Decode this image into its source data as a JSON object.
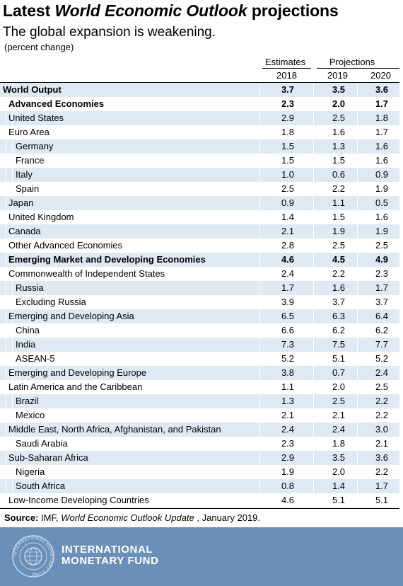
{
  "title": {
    "prefix": "Latest ",
    "italic": "World Economic Outlook",
    "suffix": " projections"
  },
  "subtitle": "The global expansion is weakening.",
  "unit": "(percent change)",
  "header": {
    "estimates": "Estimates",
    "projections": "Projections",
    "years": [
      "2018",
      "2019",
      "2020"
    ]
  },
  "rows": [
    {
      "label": "World Output",
      "indent": 0,
      "bold": true,
      "values": [
        "3.7",
        "3.5",
        "3.6"
      ]
    },
    {
      "label": "Advanced Economies",
      "indent": 1,
      "bold": true,
      "values": [
        "2.3",
        "2.0",
        "1.7"
      ]
    },
    {
      "label": "United States",
      "indent": 1,
      "bold": false,
      "values": [
        "2.9",
        "2.5",
        "1.8"
      ]
    },
    {
      "label": "Euro Area",
      "indent": 1,
      "bold": false,
      "values": [
        "1.8",
        "1.6",
        "1.7"
      ]
    },
    {
      "label": "Germany",
      "indent": 2,
      "bold": false,
      "values": [
        "1.5",
        "1.3",
        "1.6"
      ]
    },
    {
      "label": "France",
      "indent": 2,
      "bold": false,
      "values": [
        "1.5",
        "1.5",
        "1.6"
      ]
    },
    {
      "label": "Italy",
      "indent": 2,
      "bold": false,
      "values": [
        "1.0",
        "0.6",
        "0.9"
      ]
    },
    {
      "label": "Spain",
      "indent": 2,
      "bold": false,
      "values": [
        "2.5",
        "2.2",
        "1.9"
      ]
    },
    {
      "label": "Japan",
      "indent": 1,
      "bold": false,
      "values": [
        "0.9",
        "1.1",
        "0.5"
      ]
    },
    {
      "label": "United Kingdom",
      "indent": 1,
      "bold": false,
      "values": [
        "1.4",
        "1.5",
        "1.6"
      ]
    },
    {
      "label": "Canada",
      "indent": 1,
      "bold": false,
      "values": [
        "2.1",
        "1.9",
        "1.9"
      ]
    },
    {
      "label": "Other Advanced Economies",
      "indent": 1,
      "bold": false,
      "values": [
        "2.8",
        "2.5",
        "2.5"
      ]
    },
    {
      "label": "Emerging Market and Developing Economies",
      "indent": 1,
      "bold": true,
      "values": [
        "4.6",
        "4.5",
        "4.9"
      ]
    },
    {
      "label": "Commonwealth of Independent States",
      "indent": 1,
      "bold": false,
      "values": [
        "2.4",
        "2.2",
        "2.3"
      ]
    },
    {
      "label": "Russia",
      "indent": 2,
      "bold": false,
      "values": [
        "1.7",
        "1.6",
        "1.7"
      ]
    },
    {
      "label": "Excluding Russia",
      "indent": 2,
      "bold": false,
      "values": [
        "3.9",
        "3.7",
        "3.7"
      ]
    },
    {
      "label": "Emerging and Developing Asia",
      "indent": 1,
      "bold": false,
      "values": [
        "6.5",
        "6.3",
        "6.4"
      ]
    },
    {
      "label": "China",
      "indent": 2,
      "bold": false,
      "values": [
        "6.6",
        "6.2",
        "6.2"
      ]
    },
    {
      "label": "India",
      "indent": 2,
      "bold": false,
      "values": [
        "7.3",
        "7.5",
        "7.7"
      ]
    },
    {
      "label": "ASEAN-5",
      "indent": 2,
      "bold": false,
      "values": [
        "5.2",
        "5.1",
        "5.2"
      ]
    },
    {
      "label": "Emerging and Developing Europe",
      "indent": 1,
      "bold": false,
      "values": [
        "3.8",
        "0.7",
        "2.4"
      ]
    },
    {
      "label": "Latin America and the Caribbean",
      "indent": 1,
      "bold": false,
      "values": [
        "1.1",
        "2.0",
        "2.5"
      ]
    },
    {
      "label": "Brazil",
      "indent": 2,
      "bold": false,
      "values": [
        "1.3",
        "2.5",
        "2.2"
      ]
    },
    {
      "label": "Mexico",
      "indent": 2,
      "bold": false,
      "values": [
        "2.1",
        "2.1",
        "2.2"
      ]
    },
    {
      "label": "Middle East, North Africa, Afghanistan, and Pakistan",
      "indent": 1,
      "bold": false,
      "values": [
        "2.4",
        "2.4",
        "3.0"
      ]
    },
    {
      "label": "Saudi Arabia",
      "indent": 2,
      "bold": false,
      "values": [
        "2.3",
        "1.8",
        "2.1"
      ]
    },
    {
      "label": "Sub-Saharan Africa",
      "indent": 1,
      "bold": false,
      "values": [
        "2.9",
        "3.5",
        "3.6"
      ]
    },
    {
      "label": "Nigeria",
      "indent": 2,
      "bold": false,
      "values": [
        "1.9",
        "2.0",
        "2.2"
      ]
    },
    {
      "label": "South Africa",
      "indent": 2,
      "bold": false,
      "values": [
        "0.8",
        "1.4",
        "1.7"
      ]
    },
    {
      "label": "Low-Income Developing Countries",
      "indent": 1,
      "bold": false,
      "values": [
        "4.6",
        "5.1",
        "5.1"
      ]
    }
  ],
  "source": {
    "label": "Source:",
    "text1": " IMF, ",
    "italic": "World Economic Outlook Update",
    "text2": " , January 2019."
  },
  "footer": {
    "org_line1": "INTERNATIONAL",
    "org_line2": "MONETARY FUND",
    "seal_text": "INTERNATIONAL MONETARY FUND",
    "bg_color": "#6a8fb9",
    "row_shade": "#dfe9f3"
  }
}
